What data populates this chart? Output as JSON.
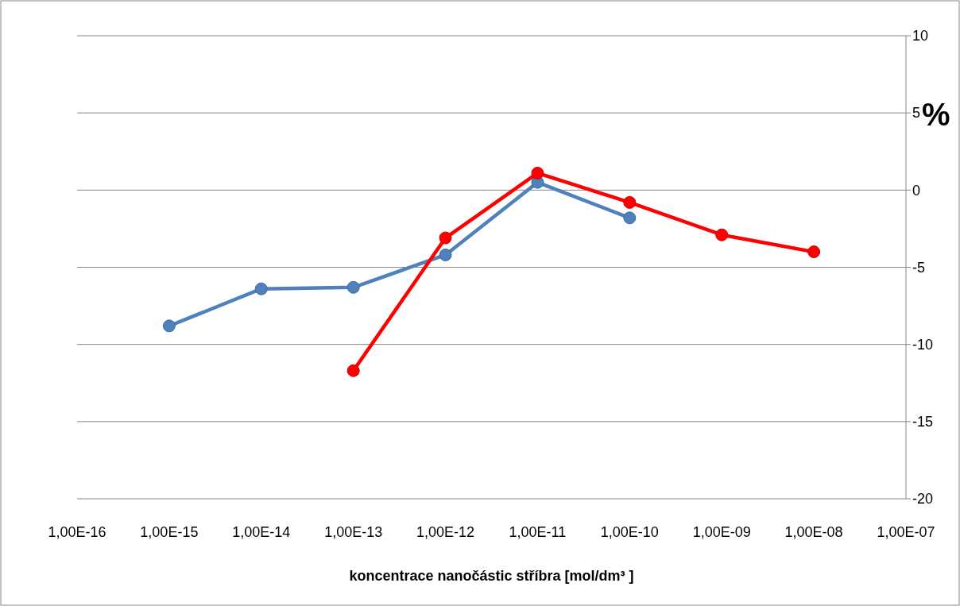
{
  "chart_data": {
    "type": "line",
    "xlabel": "koncentrace nanočástic stříbra [mol/dm³ ]",
    "ylabel": "%",
    "grid": "y",
    "marker": "circle",
    "line_style": "solid",
    "categories": [
      "1,00E-16",
      "1,00E-15",
      "1,00E-14",
      "1,00E-13",
      "1,00E-12",
      "1,00E-11",
      "1,00E-10",
      "1,00E-09",
      "1,00E-08",
      "1,00E-07"
    ],
    "ylim": [
      -20,
      10
    ],
    "yticks": [
      -20,
      -15,
      -10,
      -5,
      0,
      5,
      10
    ],
    "series": [
      {
        "color": "#4f81bd",
        "values": [
          null,
          -8.8,
          -6.4,
          -6.3,
          -4.2,
          0.5,
          -1.8,
          null,
          null,
          null
        ]
      },
      {
        "color": "#ff0000",
        "values": [
          null,
          null,
          null,
          -11.7,
          -3.1,
          1.1,
          -0.8,
          -2.9,
          -4.0,
          null
        ]
      }
    ]
  }
}
